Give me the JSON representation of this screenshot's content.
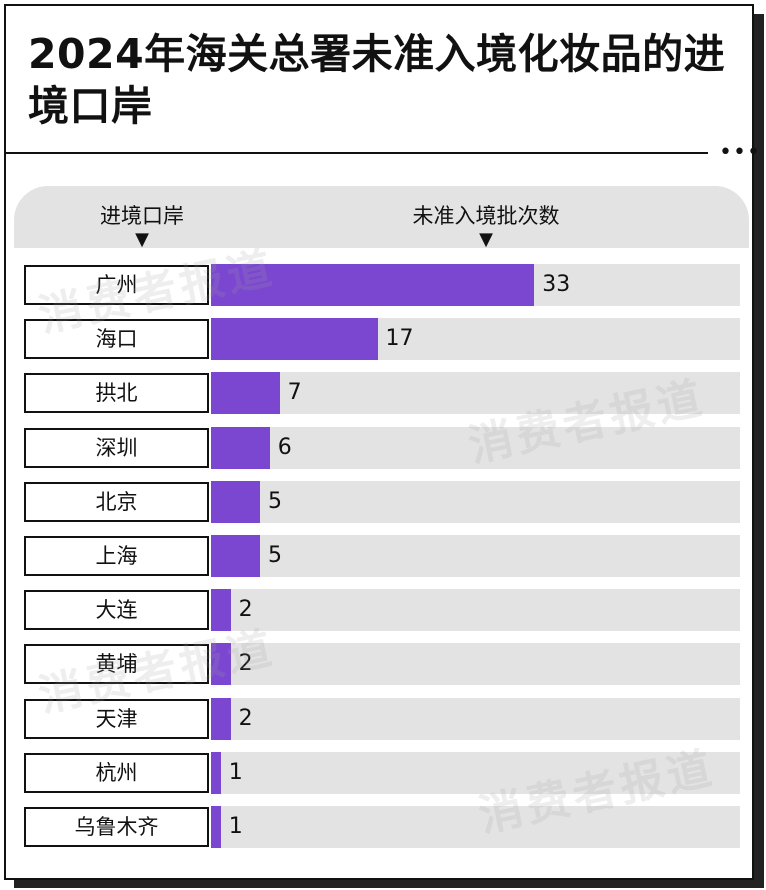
{
  "title": "2024年海关总署未准入境化妆品的进境口岸",
  "more_dots": "•••",
  "watermark": "消费者报道",
  "accent_color": "#7b47d1",
  "chart_data": {
    "type": "bar",
    "orientation": "horizontal",
    "column_headers": {
      "category": "进境口岸",
      "value": "未准入境批次数"
    },
    "categories": [
      "广州",
      "海口",
      "拱北",
      "深圳",
      "北京",
      "上海",
      "大连",
      "黄埔",
      "天津",
      "杭州",
      "乌鲁木齐"
    ],
    "values": [
      33,
      17,
      7,
      6,
      5,
      5,
      2,
      2,
      2,
      1,
      1
    ],
    "xlim": [
      0,
      54
    ],
    "grid": false,
    "legend": "none"
  }
}
